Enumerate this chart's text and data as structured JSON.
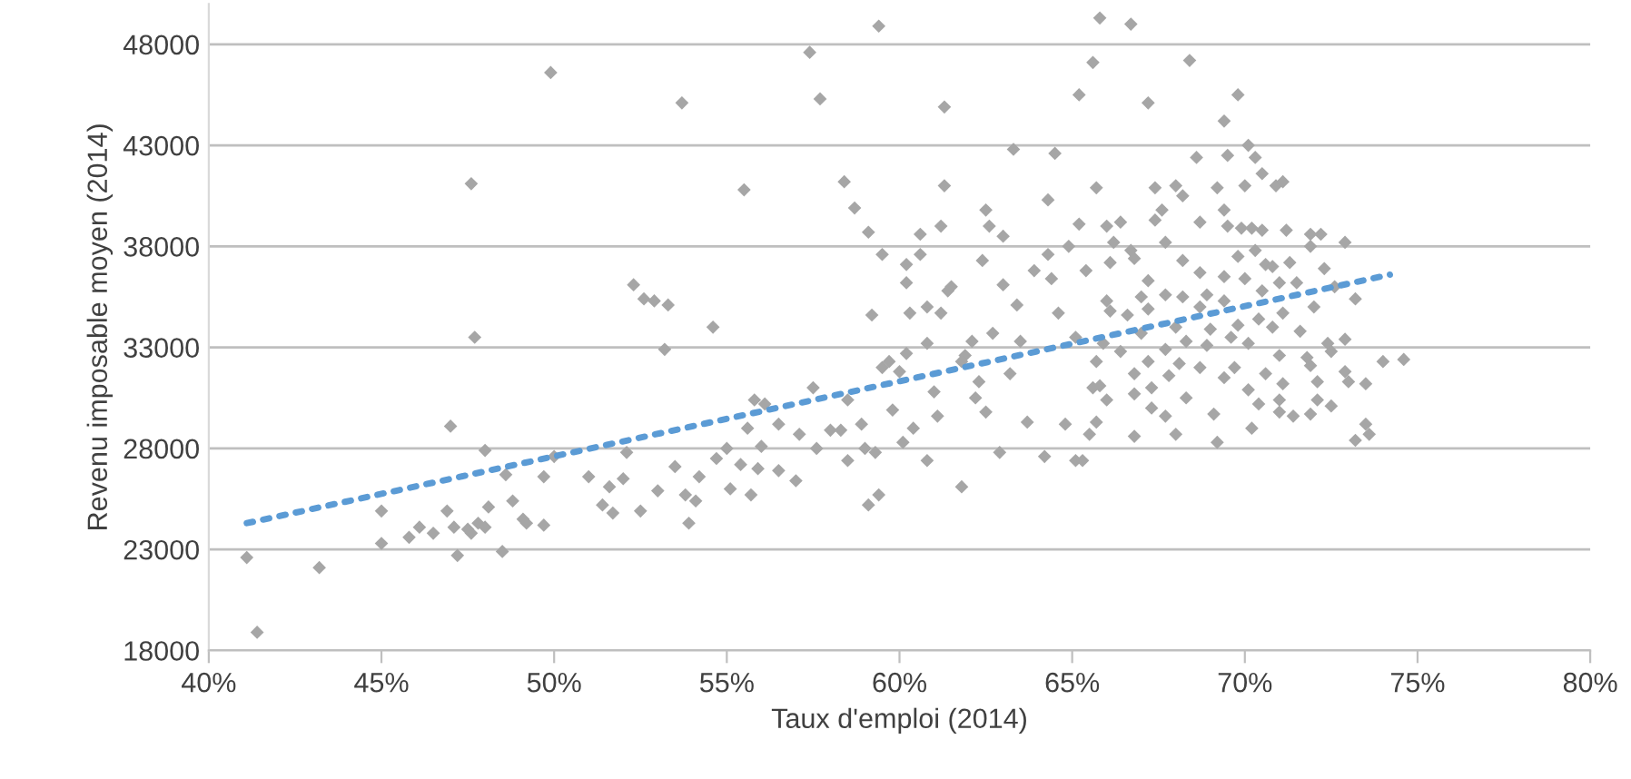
{
  "chart_data": {
    "type": "scatter",
    "xlabel": "Taux d'emploi (2014)",
    "ylabel": "Revenu imposable moyen (2014)",
    "xlim": [
      40,
      80
    ],
    "xticks": [
      {
        "value": 40,
        "label": "40%"
      },
      {
        "value": 45,
        "label": "45%"
      },
      {
        "value": 50,
        "label": "50%"
      },
      {
        "value": 55,
        "label": "55%"
      },
      {
        "value": 60,
        "label": "60%"
      },
      {
        "value": 65,
        "label": "65%"
      },
      {
        "value": 70,
        "label": "70%"
      },
      {
        "value": 75,
        "label": "75%"
      },
      {
        "value": 80,
        "label": "80%"
      }
    ],
    "ylim": [
      18000,
      50000
    ],
    "yticks": [
      18000,
      23000,
      28000,
      33000,
      38000,
      43000,
      48000
    ],
    "grid": "y",
    "marker": "diamond",
    "series": [
      {
        "color": "#a6a6a6",
        "x": [
          41.1,
          41.4,
          43.2,
          45.0,
          45.0,
          45.8,
          46.1,
          46.5,
          46.9,
          47.0,
          47.1,
          47.2,
          47.5,
          47.6,
          47.6,
          47.7,
          47.8,
          48.0,
          48.0,
          48.1,
          48.5,
          48.6,
          48.8,
          49.1,
          49.2,
          49.7,
          49.7,
          49.9,
          50.0,
          51.0,
          51.4,
          51.6,
          51.7,
          52.0,
          52.1,
          52.3,
          52.5,
          52.6,
          52.9,
          53.0,
          53.2,
          53.3,
          53.5,
          53.7,
          53.8,
          53.9,
          54.1,
          54.2,
          54.6,
          54.7,
          55.0,
          55.1,
          55.4,
          55.5,
          55.6,
          55.7,
          55.8,
          55.9,
          56.0,
          56.1,
          56.5,
          56.5,
          57.0,
          57.1,
          57.4,
          57.5,
          57.6,
          57.7,
          58.0,
          58.3,
          58.4,
          58.5,
          58.5,
          58.7,
          58.9,
          59.0,
          59.1,
          59.2,
          59.1,
          59.3,
          59.4,
          59.4,
          59.5,
          59.5,
          59.7,
          59.8,
          60.0,
          60.1,
          60.2,
          60.2,
          60.2,
          60.3,
          60.4,
          60.6,
          60.6,
          60.8,
          60.8,
          60.8,
          61.0,
          61.2,
          61.2,
          61.3,
          61.3,
          61.4,
          61.5,
          61.8,
          61.9,
          62.1,
          62.3,
          62.4,
          62.5,
          62.6,
          62.7,
          62.9,
          63.0,
          63.0,
          63.3,
          63.4,
          63.5,
          63.7,
          63.9,
          64.2,
          64.3,
          64.3,
          64.4,
          64.5,
          64.6,
          64.8,
          64.9,
          65.1,
          65.1,
          65.2,
          65.2,
          65.3,
          65.4,
          65.6,
          65.7,
          65.8,
          65.5,
          65.8,
          62.2,
          63.2,
          61.1,
          61.8,
          62.5,
          66.7,
          68.4,
          67.2,
          69.8,
          69.4,
          70.1,
          68.6,
          69.5,
          70.3,
          70.5,
          67.4,
          68.0,
          68.2,
          69.2,
          70.0,
          70.9,
          71.1,
          67.6,
          69.4,
          67.4,
          66.4,
          66.0,
          68.7,
          69.5,
          69.9,
          70.2,
          70.5,
          71.2,
          71.9,
          72.2,
          72.9,
          71.9,
          67.7,
          66.2,
          66.7,
          69.8,
          70.3,
          70.6,
          70.8,
          68.2,
          66.1,
          66.8,
          71.3,
          72.3,
          69.4,
          68.7,
          70.0,
          67.2,
          71.5,
          71.0,
          67.7,
          68.9,
          68.2,
          70.5,
          67.0,
          72.6,
          73.2,
          66.0,
          67.2,
          69.4,
          72.0,
          71.1,
          66.1,
          66.6,
          68.7,
          70.4,
          69.8,
          68.0,
          67.0,
          71.6,
          70.8,
          69.0,
          69.6,
          65.9,
          66.4,
          67.7,
          68.3,
          68.9,
          70.1,
          72.9,
          72.4,
          72.5,
          71.0,
          71.8,
          74.0,
          74.6,
          65.7,
          67.2,
          68.1,
          68.7,
          69.7,
          71.9,
          72.9,
          66.8,
          67.8,
          69.4,
          70.6,
          71.1,
          72.1,
          73.0,
          73.5,
          65.6,
          67.3,
          70.1,
          66.8,
          68.3,
          66.0,
          71.0,
          72.1,
          70.4,
          67.3,
          72.5,
          67.7,
          69.1,
          71.0,
          71.4,
          71.9,
          65.7,
          70.2,
          68.0,
          66.8,
          69.2,
          73.2,
          73.5,
          73.6
        ],
        "values": [
          22600,
          18900,
          22100,
          24900,
          23300,
          23600,
          24100,
          23800,
          24900,
          29100,
          24100,
          22700,
          24000,
          41100,
          23800,
          33500,
          24300,
          24100,
          27900,
          25100,
          22900,
          26700,
          25400,
          24500,
          24300,
          26600,
          24200,
          46600,
          27600,
          26600,
          25200,
          26100,
          24800,
          26500,
          27800,
          36100,
          24900,
          35400,
          35300,
          25900,
          32900,
          35100,
          27100,
          45100,
          25700,
          24300,
          25400,
          26600,
          34000,
          27500,
          28000,
          26000,
          27200,
          40800,
          29000,
          25700,
          30400,
          27000,
          28100,
          30200,
          29200,
          26900,
          26400,
          28700,
          47600,
          31000,
          28000,
          45300,
          28900,
          28900,
          41200,
          30400,
          27400,
          39900,
          29200,
          28000,
          38700,
          34600,
          25200,
          27800,
          48900,
          25700,
          37600,
          32000,
          32300,
          29900,
          31800,
          28300,
          36200,
          32700,
          37100,
          34700,
          29000,
          37600,
          38600,
          33200,
          35000,
          27400,
          30800,
          39000,
          34700,
          44900,
          41000,
          35800,
          36000,
          26100,
          32600,
          33300,
          31300,
          37300,
          39800,
          39000,
          33700,
          27800,
          38500,
          36100,
          42800,
          35100,
          33300,
          29300,
          36800,
          27600,
          37600,
          40300,
          36400,
          42600,
          34700,
          29200,
          38000,
          27400,
          33500,
          45500,
          39100,
          27400,
          36800,
          47100,
          40900,
          49300,
          28700,
          31100,
          30500,
          31700,
          29600,
          32300,
          29800,
          49000,
          47200,
          45100,
          45500,
          44200,
          43000,
          42400,
          42500,
          42400,
          41600,
          40900,
          41000,
          40500,
          40900,
          41000,
          41000,
          41200,
          39800,
          39800,
          39300,
          39200,
          39000,
          39200,
          39000,
          38900,
          38900,
          38800,
          38800,
          38600,
          38600,
          38200,
          38000,
          38200,
          38200,
          37800,
          37500,
          37800,
          37100,
          37000,
          37300,
          37200,
          37400,
          37200,
          36900,
          36500,
          36700,
          36400,
          36300,
          36200,
          36200,
          35600,
          35600,
          35500,
          35800,
          35500,
          36000,
          35400,
          35300,
          34900,
          35300,
          35000,
          34700,
          34800,
          34600,
          35000,
          34400,
          34100,
          34000,
          33700,
          33800,
          34000,
          33900,
          33500,
          33200,
          32800,
          32900,
          33300,
          33100,
          33200,
          33400,
          33200,
          32800,
          32600,
          32500,
          32300,
          32400,
          32300,
          32300,
          32200,
          32000,
          32000,
          32100,
          31800,
          31700,
          31600,
          31500,
          31700,
          31200,
          31300,
          31300,
          31200,
          31000,
          31000,
          30900,
          30700,
          30500,
          30400,
          30400,
          30400,
          30200,
          30000,
          30100,
          29600,
          29700,
          29800,
          29600,
          29700,
          29300,
          29000,
          28700,
          28600,
          28300,
          28400,
          29200,
          28700
        ]
      },
      {
        "type": "line",
        "color": "#5b9bd5",
        "line_style": "dotted",
        "marker": "none",
        "x": [
          41.1,
          74.2
        ],
        "values": [
          24300,
          36600
        ]
      }
    ]
  }
}
